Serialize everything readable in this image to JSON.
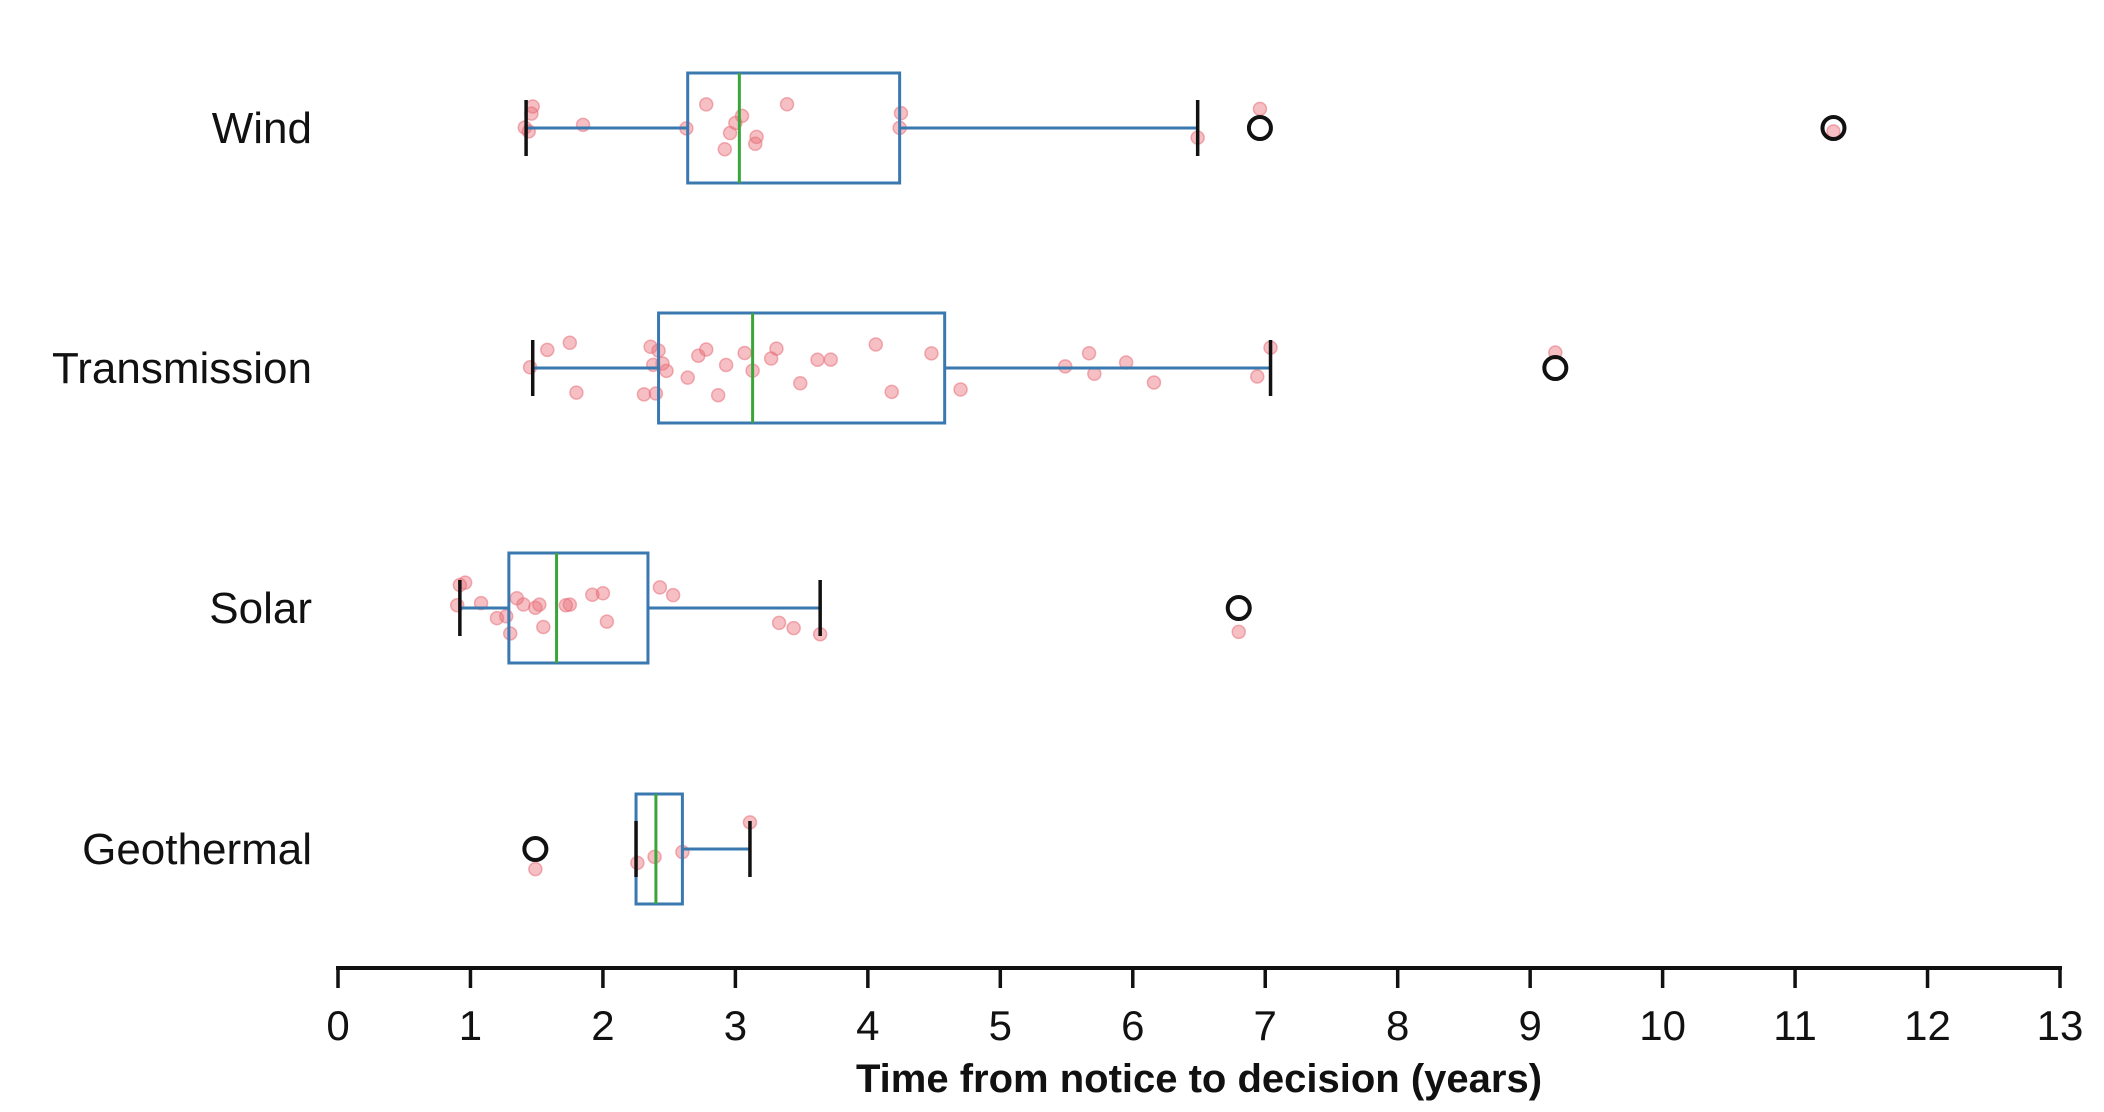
{
  "chart_data": {
    "type": "boxplot",
    "title": "",
    "xlabel": "Time from notice to decision (years)",
    "ylabel": "",
    "xlim": [
      0,
      13
    ],
    "xticks": [
      0,
      1,
      2,
      3,
      4,
      5,
      6,
      7,
      8,
      9,
      10,
      11,
      12,
      13
    ],
    "orientation": "horizontal",
    "grid": false,
    "colors": {
      "box": "#3a78b0",
      "median": "#3aa63a",
      "whisker_cap": "#111111",
      "points": "#e8707a",
      "outlier_edge": "#111111",
      "axis": "#111111"
    },
    "categories": [
      "Wind",
      "Transmission",
      "Solar",
      "Geothermal"
    ],
    "series": [
      {
        "name": "Wind",
        "whisker_low": 1.42,
        "q1": 2.64,
        "median": 3.03,
        "q3": 4.24,
        "whisker_high": 6.49,
        "outliers": [
          6.96,
          11.29
        ],
        "points": [
          1.41,
          1.44,
          1.47,
          1.46,
          1.85,
          2.63,
          2.78,
          2.92,
          2.96,
          3.0,
          3.05,
          3.15,
          3.16,
          3.39,
          4.24,
          4.25,
          6.49,
          6.96,
          11.29
        ]
      },
      {
        "name": "Transmission",
        "whisker_low": 1.47,
        "q1": 2.42,
        "median": 3.13,
        "q3": 4.58,
        "whisker_high": 7.04,
        "outliers": [
          9.19
        ],
        "points": [
          1.45,
          1.58,
          1.75,
          1.8,
          2.31,
          2.36,
          2.38,
          2.4,
          2.42,
          2.45,
          2.48,
          2.64,
          2.72,
          2.78,
          2.87,
          2.93,
          3.07,
          3.13,
          3.27,
          3.31,
          3.49,
          3.62,
          3.72,
          4.06,
          4.18,
          4.48,
          4.7,
          5.49,
          5.67,
          5.71,
          5.95,
          6.16,
          6.94,
          7.04,
          9.19
        ]
      },
      {
        "name": "Solar",
        "whisker_low": 0.92,
        "q1": 1.29,
        "median": 1.65,
        "q3": 2.34,
        "whisker_high": 3.64,
        "outliers": [
          6.8
        ],
        "points": [
          0.9,
          0.92,
          0.96,
          1.08,
          1.2,
          1.27,
          1.3,
          1.35,
          1.4,
          1.49,
          1.52,
          1.55,
          1.72,
          1.75,
          1.92,
          2.0,
          2.03,
          2.43,
          2.53,
          3.33,
          3.44,
          3.64,
          6.8
        ]
      },
      {
        "name": "Geothermal",
        "whisker_low": 2.25,
        "q1": 2.25,
        "median": 2.4,
        "q3": 2.6,
        "whisker_high": 3.11,
        "outliers": [
          1.49
        ],
        "points": [
          1.49,
          2.26,
          2.39,
          2.6,
          3.11
        ]
      }
    ]
  }
}
